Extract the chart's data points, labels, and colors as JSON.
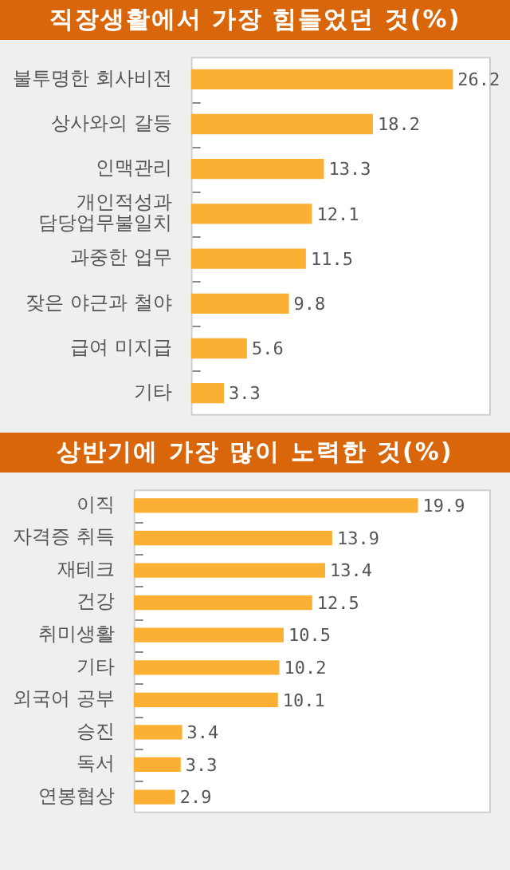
{
  "chart_data": [
    {
      "type": "bar",
      "orientation": "horizontal",
      "title": "직장생활에서 가장 힘들었던 것(%)",
      "categories": [
        "불투명한 회사비전",
        "상사와의 갈등",
        "인맥관리",
        "개인적성과 담당업무불일치",
        "과중한 업무",
        "잦은 야근과 철야",
        "급여 미지급",
        "기타"
      ],
      "values": [
        26.2,
        18.2,
        13.3,
        12.1,
        11.5,
        9.8,
        5.6,
        3.3
      ],
      "color": "#fbb034",
      "data_labels": true,
      "legend": false,
      "tick_labels": "y"
    },
    {
      "type": "bar",
      "orientation": "horizontal",
      "title": "상반기에 가장 많이 노력한 것(%)",
      "categories": [
        "이직",
        "자격증 취득",
        "재테크",
        "건강",
        "취미생활",
        "기타",
        "외국어 공부",
        "승진",
        "독서",
        "연봉협상"
      ],
      "values": [
        19.9,
        13.9,
        13.4,
        12.5,
        10.5,
        10.2,
        10.1,
        3.4,
        3.3,
        2.9
      ],
      "color": "#fbb034",
      "data_labels": true,
      "legend": false,
      "tick_labels": "y"
    }
  ]
}
